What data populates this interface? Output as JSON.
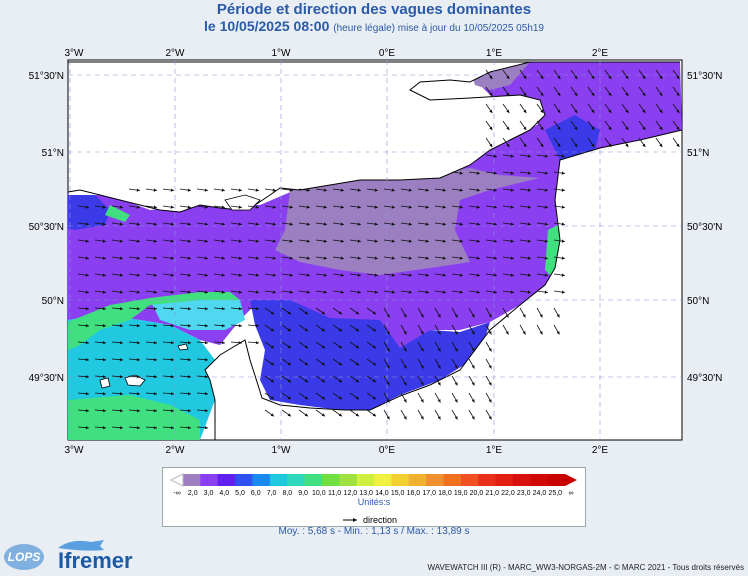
{
  "header": {
    "title": "Période et direction des vagues dominantes",
    "date": "le 10/05/2025 08:00",
    "update": "(heure légale) mise à jour du 10/05/2025 05h19"
  },
  "map": {
    "lon_labels": [
      "3°W",
      "2°W",
      "1°W",
      "0°E",
      "1°E",
      "2°E"
    ],
    "lat_labels": [
      "51°30'N",
      "51°N",
      "50°30'N",
      "50°N",
      "49°30'N"
    ],
    "wave_direction_text": "direction"
  },
  "legend": {
    "ticks": [
      "-∞",
      "2,0",
      "3,0",
      "4,0",
      "5,0",
      "6,0",
      "7,0",
      "8,0",
      "9,0",
      "10,0",
      "11,0",
      "12,0",
      "13,0",
      "14,0",
      "15,0",
      "16,0",
      "17,0",
      "18,0",
      "19,0",
      "20,0",
      "21,0",
      "22,0",
      "23,0",
      "24,0",
      "25,0",
      "∞"
    ],
    "unit": "Unités:s",
    "colors": [
      "#9b7fc0",
      "#8a3ff0",
      "#6020f0",
      "#3050f0",
      "#1a8af0",
      "#20c8e0",
      "#30d8c0",
      "#40e080",
      "#70e040",
      "#a0e040",
      "#d0f040",
      "#f0f040",
      "#f0d030",
      "#f0b030",
      "#f09030",
      "#f07020",
      "#f05020",
      "#e83018",
      "#e02010",
      "#d81010",
      "#d00808",
      "#c80000"
    ],
    "arrow_label": "direction"
  },
  "stats": {
    "text": "Moy. : 5,68 s   -   Min. : 1,13 s / Max. : 13,89 s"
  },
  "footer": {
    "credit": "WAVEWATCH III (R) - MARC_WW3-NORGAS-2M - © MARC 2021 - Tous droits réservés"
  },
  "logos": {
    "lops": "LOPS",
    "ifremer": "Ifremer"
  }
}
